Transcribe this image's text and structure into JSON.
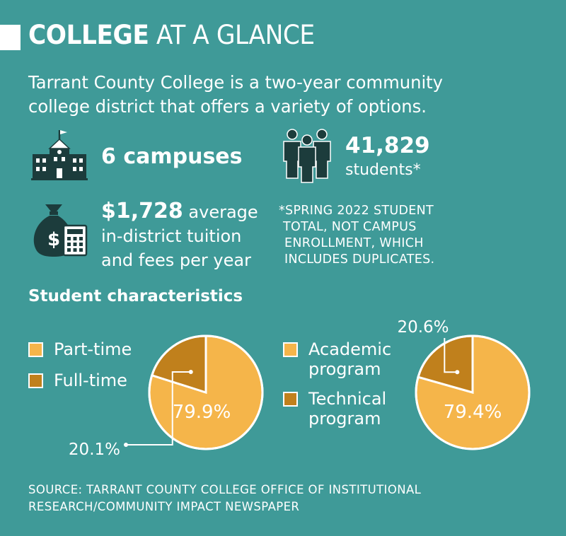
{
  "title": {
    "bold": "COLLEGE",
    "light": "AT A GLANCE"
  },
  "intro": "Tarrant County College is a two-year community college district that offers a variety of options.",
  "stats": {
    "campuses": "6 campuses",
    "students_number": "41,829",
    "students_label": "students*",
    "tuition_amount": "$1,728",
    "tuition_text_1": "average",
    "tuition_text_2": "in-district tuition and fees per year"
  },
  "footnote_lines": [
    "*SPRING 2022 STUDENT",
    "TOTAL, NOT CAMPUS",
    "ENROLLMENT, WHICH",
    "INCLUDES DUPLICATES."
  ],
  "section_heading": "Student characteristics",
  "colors": {
    "background": "#3f9a98",
    "light_slice": "#f5b54a",
    "dark_slice": "#c0801c",
    "text": "#ffffff"
  },
  "icons": [
    "school-building-icon",
    "people-group-icon",
    "money-bag-calculator-icon"
  ],
  "chart_data": [
    {
      "type": "pie",
      "categories": [
        "Part-time",
        "Full-time"
      ],
      "values": [
        79.9,
        20.1
      ],
      "data_labels": [
        "79.9%",
        "20.1%"
      ]
    },
    {
      "type": "pie",
      "categories": [
        "Academic program",
        "Technical program"
      ],
      "values": [
        79.4,
        20.6
      ],
      "data_labels": [
        "79.4%",
        "20.6%"
      ]
    }
  ],
  "legend1": [
    {
      "label": "Part-time",
      "color": "#f5b54a"
    },
    {
      "label": "Full-time",
      "color": "#c0801c"
    }
  ],
  "legend2": [
    {
      "label": "Academic program",
      "color": "#f5b54a"
    },
    {
      "label": "Technical program",
      "color": "#c0801c"
    }
  ],
  "source": [
    "SOURCE: TARRANT COUNTY COLLEGE OFFICE OF INSTITUTIONAL",
    "RESEARCH/COMMUNITY IMPACT NEWSPAPER"
  ]
}
